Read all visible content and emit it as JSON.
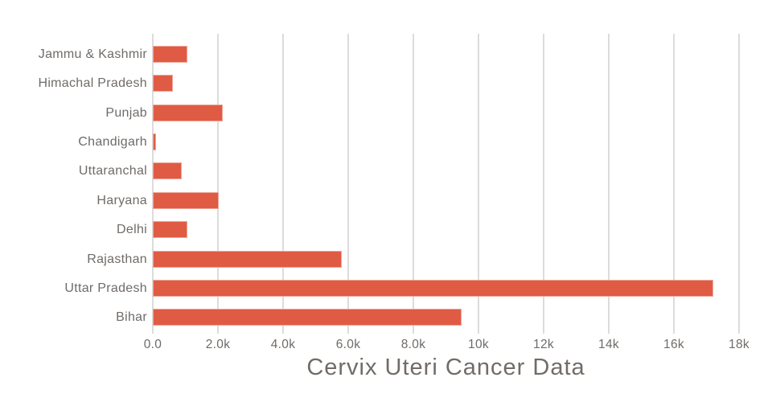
{
  "chart_data": {
    "type": "bar",
    "orientation": "horizontal",
    "title": "Cervix Uteri Cancer Data",
    "categories": [
      "Jammu & Kashmir",
      "Himachal Pradesh",
      "Punjab",
      "Chandigarh",
      "Uttaranchal",
      "Haryana",
      "Delhi",
      "Rajasthan",
      "Uttar Pradesh",
      "Bihar"
    ],
    "values": [
      1070,
      620,
      2160,
      110,
      880,
      2020,
      1060,
      5800,
      17200,
      9480
    ],
    "xlim": [
      0,
      18000
    ],
    "x_tick_values": [
      0,
      2000,
      4000,
      6000,
      8000,
      10000,
      12000,
      14000,
      16000,
      18000
    ],
    "x_tick_labels": [
      "0.0",
      "2.0k",
      "4.0k",
      "6.0k",
      "8.0k",
      "10k",
      "12k",
      "14k",
      "16k",
      "18k"
    ],
    "grid": "vertical",
    "legend_position": "none",
    "colors": {
      "bar": "#E05B44",
      "gridline": "#DCDCDC",
      "category_text": "#6F6B68",
      "tick_text": "#6F6B68",
      "title_text": "#716C68",
      "background": "#FFFFFF"
    }
  }
}
